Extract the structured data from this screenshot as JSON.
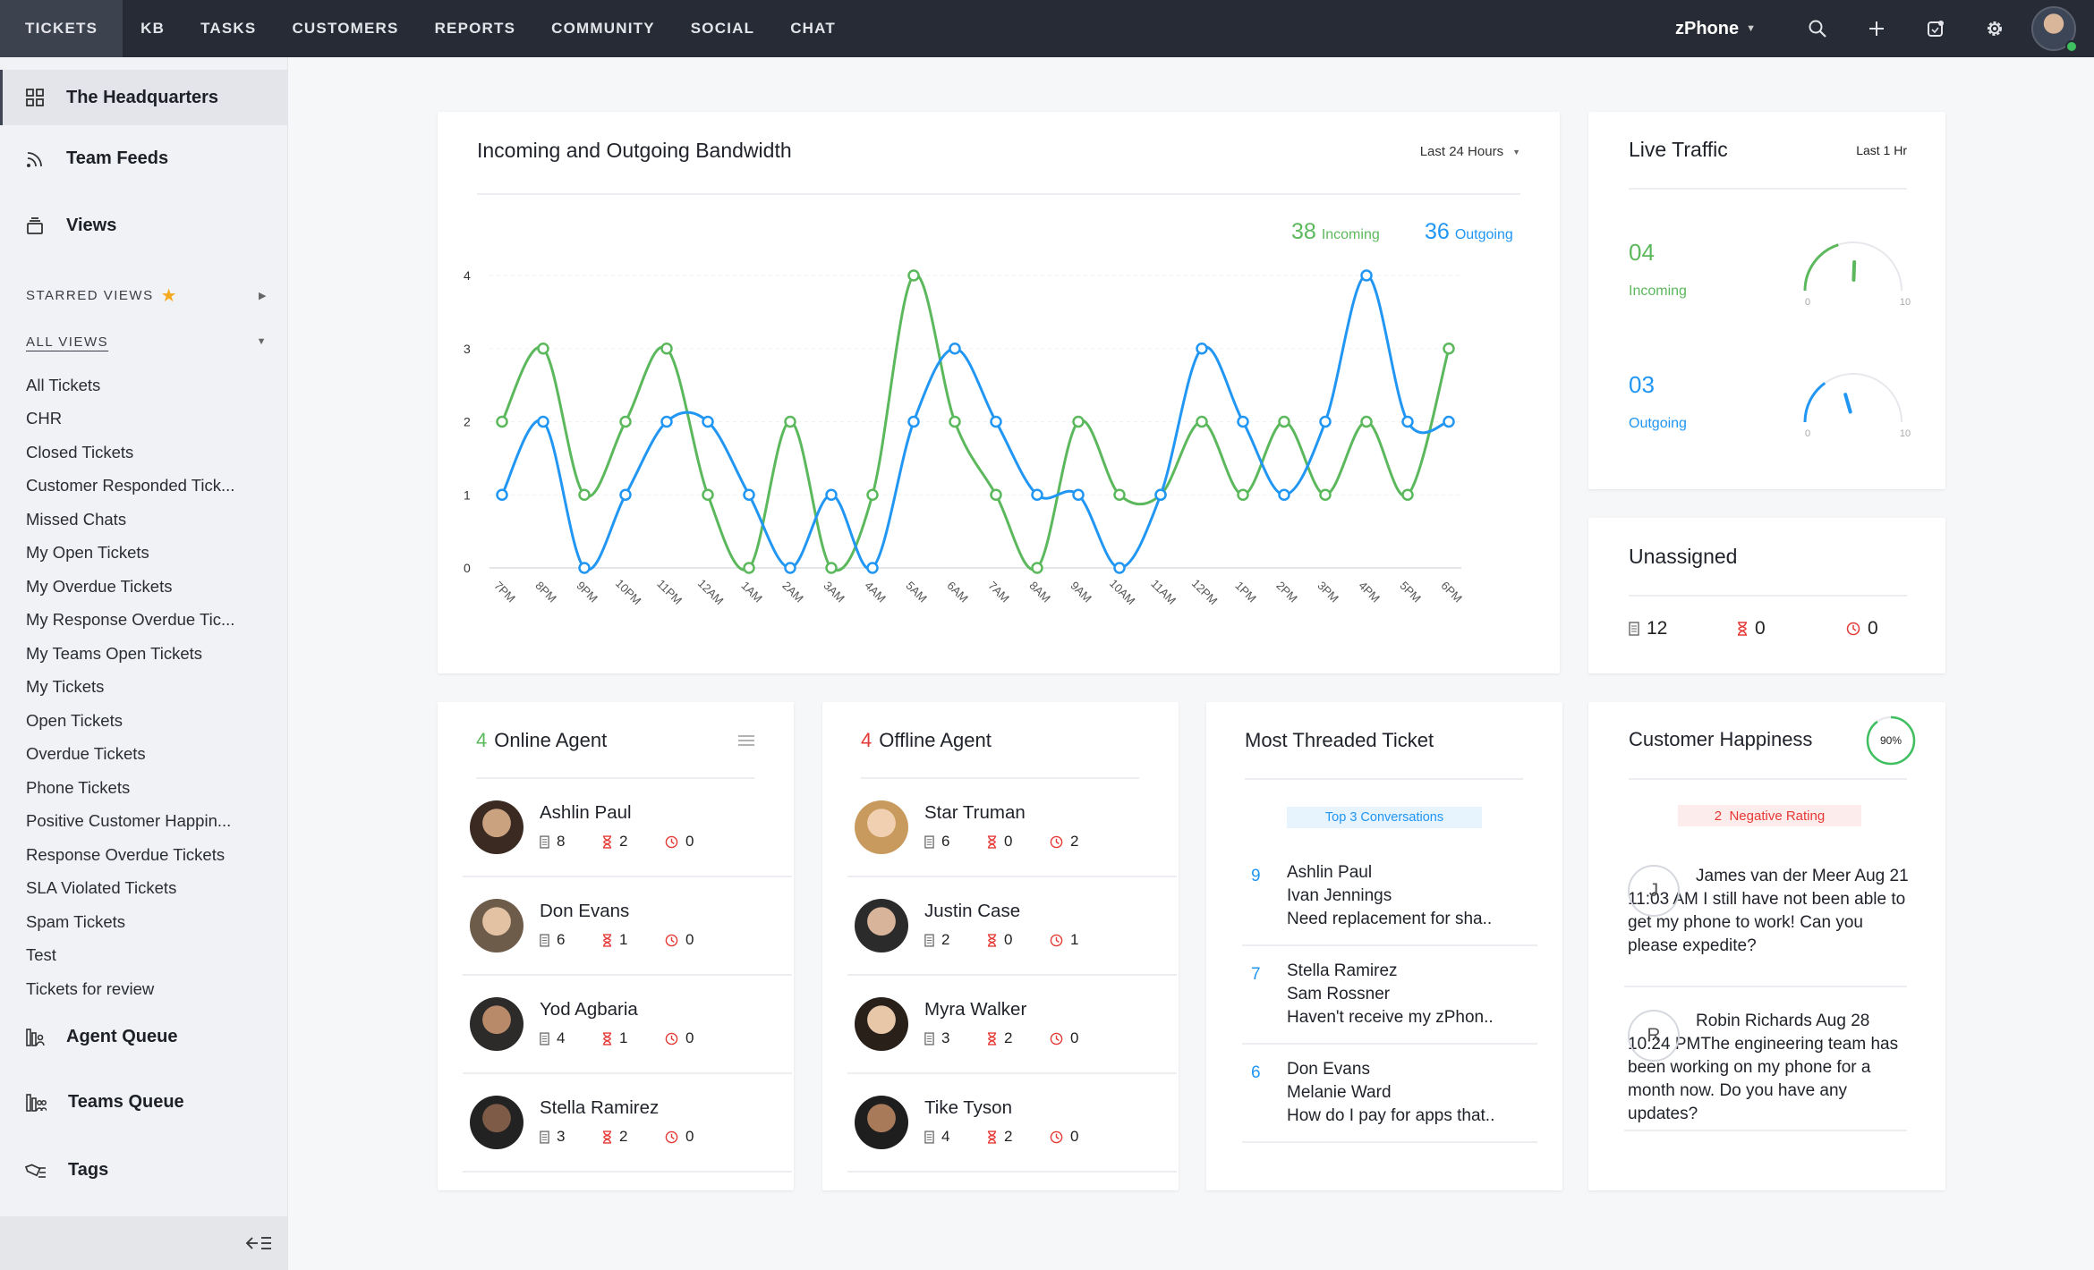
{
  "nav": {
    "tabs": [
      "TICKETS",
      "KB",
      "TASKS",
      "CUSTOMERS",
      "REPORTS",
      "COMMUNITY",
      "SOCIAL",
      "CHAT"
    ],
    "department": "zPhone"
  },
  "sidebar": {
    "main_items": [
      "The Headquarters",
      "Team Feeds",
      "Views"
    ],
    "starred_label": "STARRED VIEWS",
    "all_views_label": "ALL VIEWS",
    "views": [
      "All Tickets",
      "CHR",
      "Closed Tickets",
      "Customer Responded Tick...",
      "Missed Chats",
      "My Open Tickets",
      "My Overdue Tickets",
      "My Response Overdue Tic...",
      "My Teams Open Tickets",
      "My Tickets",
      "Open Tickets",
      "Overdue Tickets",
      "Phone Tickets",
      "Positive Customer Happin...",
      "Response Overdue Tickets",
      "SLA Violated Tickets",
      "Spam Tickets",
      "Test",
      "Tickets for review"
    ],
    "bottom_items": [
      "Agent Queue",
      "Teams Queue",
      "Tags"
    ]
  },
  "bandwidth": {
    "title": "Incoming and Outgoing Bandwidth",
    "period": "Last 24 Hours",
    "incoming_count": "38",
    "incoming_label": "Incoming",
    "outgoing_count": "36",
    "outgoing_label": "Outgoing"
  },
  "chart_data": {
    "type": "line",
    "categories": [
      "7PM",
      "8PM",
      "9PM",
      "10PM",
      "11PM",
      "12AM",
      "1AM",
      "2AM",
      "3AM",
      "4AM",
      "5AM",
      "6AM",
      "7AM",
      "8AM",
      "9AM",
      "10AM",
      "11AM",
      "12PM",
      "1PM",
      "2PM",
      "3PM",
      "4PM",
      "5PM",
      "6PM"
    ],
    "yticks": [
      "0",
      "1",
      "2",
      "3",
      "4"
    ],
    "ylim": [
      0,
      4
    ],
    "series": [
      {
        "name": "Incoming",
        "color": "#5cb85c",
        "values": [
          2,
          3,
          1,
          2,
          3,
          1,
          0,
          2,
          0,
          1,
          4,
          2,
          1,
          0,
          2,
          1,
          1,
          2,
          1,
          2,
          1,
          2,
          1,
          3
        ]
      },
      {
        "name": "Outgoing",
        "color": "#2196f3",
        "values": [
          1,
          2,
          0,
          1,
          2,
          2,
          1,
          0,
          1,
          0,
          2,
          3,
          2,
          1,
          1,
          0,
          1,
          3,
          2,
          1,
          2,
          4,
          2,
          2
        ]
      }
    ]
  },
  "live_traffic": {
    "title": "Live Traffic",
    "period": "Last 1 Hr",
    "incoming_value": "04",
    "incoming_label": "Incoming",
    "outgoing_value": "03",
    "outgoing_label": "Outgoing",
    "gauge_min": "0",
    "gauge_max": "10",
    "incoming_level": 4,
    "outgoing_level": 3,
    "incoming_color": "#5cb85c",
    "outgoing_color": "#2196f3"
  },
  "unassigned": {
    "title": "Unassigned",
    "tickets": "12",
    "pending": "0",
    "overdue": "0"
  },
  "online_agents": {
    "count": "4",
    "title": "Online Agent",
    "agents": [
      {
        "name": "Ashlin Paul",
        "tickets": "8",
        "pending": "2",
        "overdue": "0"
      },
      {
        "name": "Don Evans",
        "tickets": "6",
        "pending": "1",
        "overdue": "0"
      },
      {
        "name": "Yod Agbaria",
        "tickets": "4",
        "pending": "1",
        "overdue": "0"
      },
      {
        "name": "Stella Ramirez",
        "tickets": "3",
        "pending": "2",
        "overdue": "0"
      }
    ]
  },
  "offline_agents": {
    "count": "4",
    "title": "Offline Agent",
    "agents": [
      {
        "name": "Star Truman",
        "tickets": "6",
        "pending": "0",
        "overdue": "2"
      },
      {
        "name": "Justin Case",
        "tickets": "2",
        "pending": "0",
        "overdue": "1"
      },
      {
        "name": "Myra Walker",
        "tickets": "3",
        "pending": "2",
        "overdue": "0"
      },
      {
        "name": "Tike Tyson",
        "tickets": "4",
        "pending": "2",
        "overdue": "0"
      }
    ]
  },
  "threaded": {
    "title": "Most Threaded Ticket",
    "badge": "Top 3 Conversations",
    "items": [
      {
        "count": "9",
        "agent": "Ashlin Paul",
        "customer": "Ivan Jennings",
        "subject": "Need replacement for sha.."
      },
      {
        "count": "7",
        "agent": "Stella Ramirez",
        "customer": "Sam Rossner",
        "subject": "Haven't receive my zPhon.."
      },
      {
        "count": "6",
        "agent": "Don Evans",
        "customer": "Melanie Ward",
        "subject": "How do I pay for apps that.."
      }
    ]
  },
  "happiness": {
    "title": "Customer Happiness",
    "percent": "90%",
    "percent_value": 90,
    "badge": "2  Negative Rating",
    "feedback": [
      {
        "initial": "J",
        "text": "James van der Meer Aug 21 11:03 AM I still have not been able to get my phone to work! Can you please expedite?"
      },
      {
        "initial": "R",
        "text": "Robin Richards  Aug 28 10:24 PMThe engineering team has been working on my phone for a month now. Do you have any updates?"
      }
    ]
  }
}
